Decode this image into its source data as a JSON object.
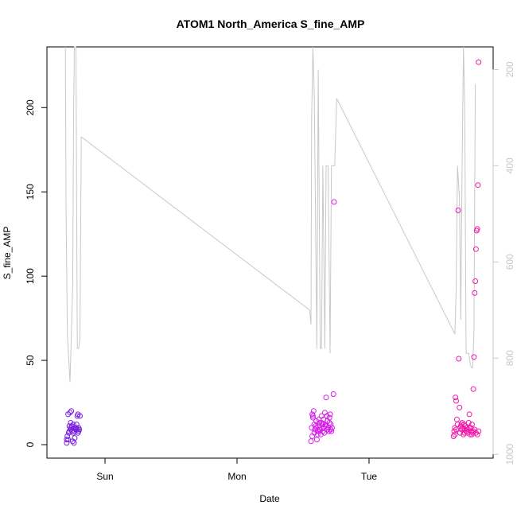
{
  "chart_data": {
    "type": "scatter",
    "title": "ATOM1 North_America S_fine_AMP",
    "xlabel": "Date",
    "ylabel": "S_fine_AMP",
    "x_ticks": [
      {
        "label": "Sun",
        "value": 1.0
      },
      {
        "label": "Mon",
        "value": 2.0
      },
      {
        "label": "Tue",
        "value": 3.0
      }
    ],
    "xlim": [
      0.56,
      3.94
    ],
    "ylim": [
      -8,
      236
    ],
    "y_ticks": [
      0,
      50,
      100,
      150,
      200
    ],
    "y2_ticks": [
      200,
      400,
      600,
      800,
      1000
    ],
    "y2lim": [
      1008,
      153
    ],
    "y2_reversed": true,
    "grid": false,
    "colors": {
      "axis": "#000000",
      "line": "#c8c8c8",
      "right_axis": "#c8c8c8",
      "points_day1": "#7b1fe0",
      "points_day2": "#d61fe8",
      "points_day3": "#f01aa8"
    },
    "line_series": {
      "axis": "right",
      "points": [
        [
          0.7,
          100
        ],
        [
          0.705,
          500
        ],
        [
          0.715,
          750
        ],
        [
          0.725,
          800
        ],
        [
          0.735,
          850
        ],
        [
          0.745,
          750
        ],
        [
          0.755,
          650
        ],
        [
          0.762,
          300
        ],
        [
          0.768,
          100
        ],
        [
          0.78,
          100
        ],
        [
          0.79,
          780
        ],
        [
          0.8,
          780
        ],
        [
          0.81,
          760
        ],
        [
          0.82,
          340
        ],
        [
          2.55,
          700
        ],
        [
          2.56,
          730
        ],
        [
          2.565,
          300
        ],
        [
          2.575,
          100
        ],
        [
          2.585,
          250
        ],
        [
          2.605,
          780
        ],
        [
          2.615,
          200
        ],
        [
          2.63,
          780
        ],
        [
          2.64,
          780
        ],
        [
          2.65,
          400
        ],
        [
          2.665,
          780
        ],
        [
          2.675,
          400
        ],
        [
          2.69,
          400
        ],
        [
          2.705,
          790
        ],
        [
          2.715,
          400
        ],
        [
          2.725,
          400
        ],
        [
          2.74,
          400
        ],
        [
          2.755,
          260
        ],
        [
          3.65,
          750
        ],
        [
          3.66,
          660
        ],
        [
          3.67,
          400
        ],
        [
          3.685,
          470
        ],
        [
          3.695,
          720
        ],
        [
          3.705,
          400
        ],
        [
          3.715,
          100
        ],
        [
          3.725,
          280
        ],
        [
          3.735,
          790
        ],
        [
          3.745,
          790
        ],
        [
          3.755,
          790
        ],
        [
          3.765,
          810
        ],
        [
          3.775,
          820
        ],
        [
          3.785,
          820
        ],
        [
          3.795,
          740
        ],
        [
          3.805,
          230
        ]
      ]
    },
    "series": [
      {
        "color_key": "points_day1",
        "points": [
          [
            0.71,
            1
          ],
          [
            0.72,
            3
          ],
          [
            0.715,
            5
          ],
          [
            0.73,
            11
          ],
          [
            0.74,
            13
          ],
          [
            0.72,
            18
          ],
          [
            0.735,
            19
          ],
          [
            0.74,
            9
          ],
          [
            0.75,
            8
          ],
          [
            0.76,
            7
          ],
          [
            0.755,
            2
          ],
          [
            0.765,
            1
          ],
          [
            0.77,
            4
          ],
          [
            0.775,
            10
          ],
          [
            0.785,
            12
          ],
          [
            0.79,
            17
          ],
          [
            0.795,
            18
          ],
          [
            0.8,
            8
          ],
          [
            0.805,
            9
          ],
          [
            0.81,
            17
          ],
          [
            0.795,
            7
          ],
          [
            0.78,
            9
          ],
          [
            0.77,
            8
          ],
          [
            0.745,
            20
          ],
          [
            0.75,
            11
          ],
          [
            0.76,
            12
          ],
          [
            0.765,
            10
          ],
          [
            0.78,
            10
          ],
          [
            0.79,
            9
          ],
          [
            0.8,
            10
          ],
          [
            0.73,
            8
          ],
          [
            0.74,
            10
          ],
          [
            0.71,
            3
          ],
          [
            0.725,
            7
          ]
        ]
      },
      {
        "color_key": "points_day2",
        "points": [
          [
            2.56,
            2
          ],
          [
            2.57,
            5
          ],
          [
            2.565,
            10
          ],
          [
            2.575,
            16
          ],
          [
            2.58,
            20
          ],
          [
            2.57,
            18
          ],
          [
            2.585,
            12
          ],
          [
            2.59,
            9
          ],
          [
            2.6,
            14
          ],
          [
            2.605,
            3
          ],
          [
            2.61,
            8
          ],
          [
            2.615,
            11
          ],
          [
            2.62,
            15
          ],
          [
            2.625,
            13
          ],
          [
            2.63,
            9
          ],
          [
            2.635,
            6
          ],
          [
            2.64,
            17
          ],
          [
            2.645,
            12
          ],
          [
            2.65,
            8
          ],
          [
            2.655,
            10
          ],
          [
            2.66,
            7
          ],
          [
            2.665,
            19
          ],
          [
            2.67,
            12
          ],
          [
            2.675,
            28
          ],
          [
            2.68,
            9
          ],
          [
            2.685,
            14
          ],
          [
            2.69,
            10
          ],
          [
            2.695,
            8
          ],
          [
            2.7,
            16
          ],
          [
            2.705,
            18
          ],
          [
            2.71,
            12
          ],
          [
            2.715,
            8
          ],
          [
            2.72,
            10
          ],
          [
            2.73,
            30
          ],
          [
            2.735,
            144
          ],
          [
            2.575,
            17
          ],
          [
            2.585,
            7
          ],
          [
            2.595,
            11
          ],
          [
            2.61,
            6
          ],
          [
            2.625,
            9
          ],
          [
            2.64,
            13
          ],
          [
            2.655,
            15
          ],
          [
            2.67,
            11
          ],
          [
            2.685,
            9
          ],
          [
            2.7,
            13
          ],
          [
            2.6,
            10
          ],
          [
            2.62,
            8
          ],
          [
            2.65,
            12
          ],
          [
            2.68,
            17
          ],
          [
            2.71,
            9
          ]
        ]
      },
      {
        "color_key": "points_day3",
        "points": [
          [
            3.64,
            5
          ],
          [
            3.645,
            8
          ],
          [
            3.65,
            10
          ],
          [
            3.655,
            28
          ],
          [
            3.66,
            26
          ],
          [
            3.665,
            15
          ],
          [
            3.67,
            12
          ],
          [
            3.675,
            139
          ],
          [
            3.68,
            51
          ],
          [
            3.685,
            22
          ],
          [
            3.69,
            7
          ],
          [
            3.695,
            11
          ],
          [
            3.7,
            9
          ],
          [
            3.705,
            13
          ],
          [
            3.71,
            10
          ],
          [
            3.715,
            6
          ],
          [
            3.72,
            12
          ],
          [
            3.725,
            9
          ],
          [
            3.73,
            11
          ],
          [
            3.735,
            8
          ],
          [
            3.74,
            10
          ],
          [
            3.745,
            7
          ],
          [
            3.75,
            9
          ],
          [
            3.755,
            13
          ],
          [
            3.76,
            18
          ],
          [
            3.765,
            6
          ],
          [
            3.77,
            10
          ],
          [
            3.775,
            8
          ],
          [
            3.78,
            12
          ],
          [
            3.785,
            7
          ],
          [
            3.79,
            33
          ],
          [
            3.795,
            52
          ],
          [
            3.8,
            90
          ],
          [
            3.805,
            97
          ],
          [
            3.81,
            116
          ],
          [
            3.815,
            127
          ],
          [
            3.82,
            128
          ],
          [
            3.825,
            154
          ],
          [
            3.83,
            227
          ],
          [
            3.78,
            6
          ],
          [
            3.79,
            8
          ],
          [
            3.65,
            6
          ],
          [
            3.66,
            9
          ],
          [
            3.7,
            12
          ],
          [
            3.72,
            7
          ],
          [
            3.74,
            8
          ],
          [
            3.76,
            10
          ],
          [
            3.8,
            9
          ],
          [
            3.81,
            7
          ],
          [
            3.82,
            6
          ],
          [
            3.83,
            8
          ]
        ]
      }
    ]
  }
}
